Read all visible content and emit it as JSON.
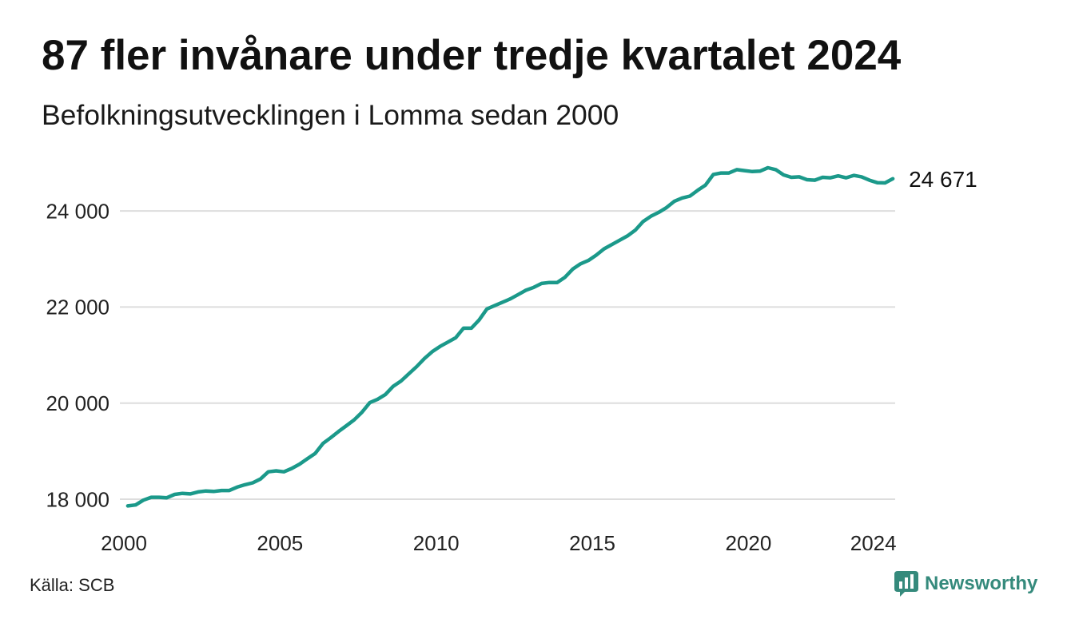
{
  "chart_data": {
    "type": "line",
    "title": "87 fler invånare under tredje kvartalet 2024",
    "subtitle": "Befolkningsutvecklingen i Lomma sedan 2000",
    "xlabel": "",
    "ylabel": "",
    "x_ticks": [
      {
        "value": 2000,
        "label": "2000"
      },
      {
        "value": 2005,
        "label": "2005"
      },
      {
        "value": 2010,
        "label": "2010"
      },
      {
        "value": 2015,
        "label": "2015"
      },
      {
        "value": 2020,
        "label": "2020"
      },
      {
        "value": 2024,
        "label": "2024"
      }
    ],
    "y_ticks": [
      {
        "value": 18000,
        "label": "18 000"
      },
      {
        "value": 20000,
        "label": "20 000"
      },
      {
        "value": 22000,
        "label": "22 000"
      },
      {
        "value": 24000,
        "label": "24 000"
      }
    ],
    "xlim": [
      2000,
      2024.75
    ],
    "ylim": [
      17750,
      25000
    ],
    "grid": "horizontal",
    "legend": "none",
    "series": [
      {
        "color": "#1b998a",
        "x": [
          "2000-Q1",
          "2000-Q2",
          "2000-Q3",
          "2000-Q4",
          "2001-Q1",
          "2001-Q2",
          "2001-Q3",
          "2001-Q4",
          "2002-Q1",
          "2002-Q2",
          "2002-Q3",
          "2002-Q4",
          "2003-Q1",
          "2003-Q2",
          "2003-Q3",
          "2003-Q4",
          "2004-Q1",
          "2004-Q2",
          "2004-Q3",
          "2004-Q4",
          "2005-Q1",
          "2005-Q2",
          "2005-Q3",
          "2005-Q4",
          "2006-Q1",
          "2006-Q2",
          "2006-Q3",
          "2006-Q4",
          "2007-Q1",
          "2007-Q2",
          "2007-Q3",
          "2007-Q4",
          "2008-Q1",
          "2008-Q2",
          "2008-Q3",
          "2008-Q4",
          "2009-Q1",
          "2009-Q2",
          "2009-Q3",
          "2009-Q4",
          "2010-Q1",
          "2010-Q2",
          "2010-Q3",
          "2010-Q4",
          "2011-Q1",
          "2011-Q2",
          "2011-Q3",
          "2011-Q4",
          "2012-Q1",
          "2012-Q2",
          "2012-Q3",
          "2012-Q4",
          "2013-Q1",
          "2013-Q2",
          "2013-Q3",
          "2013-Q4",
          "2014-Q1",
          "2014-Q2",
          "2014-Q3",
          "2014-Q4",
          "2015-Q1",
          "2015-Q2",
          "2015-Q3",
          "2015-Q4",
          "2016-Q1",
          "2016-Q2",
          "2016-Q3",
          "2016-Q4",
          "2017-Q1",
          "2017-Q2",
          "2017-Q3",
          "2017-Q4",
          "2018-Q1",
          "2018-Q2",
          "2018-Q3",
          "2018-Q4",
          "2019-Q1",
          "2019-Q2",
          "2019-Q3",
          "2019-Q4",
          "2020-Q1",
          "2020-Q2",
          "2020-Q3",
          "2020-Q4",
          "2021-Q1",
          "2021-Q2",
          "2021-Q3",
          "2021-Q4",
          "2022-Q1",
          "2022-Q2",
          "2022-Q3",
          "2022-Q4",
          "2023-Q1",
          "2023-Q2",
          "2023-Q3",
          "2023-Q4",
          "2024-Q1",
          "2024-Q2",
          "2024-Q3"
        ],
        "values": [
          17860,
          17880,
          17980,
          18040,
          18040,
          18030,
          18100,
          18120,
          18110,
          18150,
          18170,
          18160,
          18180,
          18180,
          18250,
          18300,
          18340,
          18420,
          18570,
          18590,
          18570,
          18640,
          18730,
          18840,
          18950,
          19160,
          19280,
          19410,
          19530,
          19650,
          19810,
          20010,
          20080,
          20180,
          20350,
          20460,
          20610,
          20760,
          20930,
          21070,
          21180,
          21270,
          21360,
          21560,
          21560,
          21730,
          21960,
          22030,
          22100,
          22170,
          22260,
          22350,
          22410,
          22490,
          22510,
          22510,
          22620,
          22790,
          22900,
          22970,
          23080,
          23210,
          23300,
          23390,
          23480,
          23600,
          23780,
          23890,
          23970,
          24070,
          24200,
          24270,
          24310,
          24430,
          24540,
          24760,
          24790,
          24790,
          24860,
          24840,
          24820,
          24830,
          24900,
          24860,
          24750,
          24700,
          24710,
          24650,
          24640,
          24700,
          24690,
          24730,
          24690,
          24740,
          24710,
          24640,
          24590,
          24584,
          24671
        ]
      }
    ],
    "end_label": {
      "value": 24671,
      "text": "24 671"
    }
  },
  "footer": {
    "source": "Källa: SCB",
    "brand": "Newsworthy",
    "brand_icon": "bar-chart-speech-bubble-icon",
    "brand_color": "#358a7c"
  },
  "colors": {
    "background": "#ffffff",
    "text": "#111111",
    "grid": "#dddddd"
  }
}
